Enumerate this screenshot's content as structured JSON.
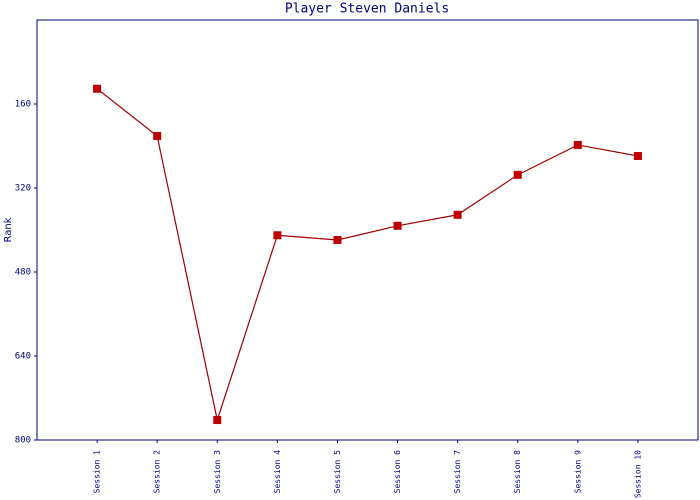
{
  "chart_data": {
    "type": "line",
    "title": "Player Steven Daniels",
    "y_label": "Rank",
    "categories": [
      "Session 1",
      "Session 2",
      "Session 3",
      "Session 4",
      "Session 5",
      "Session 6",
      "Session 7",
      "Session 8",
      "Session 9",
      "Session 10"
    ],
    "values": [
      131,
      221,
      762,
      410,
      419,
      392,
      371,
      295,
      238,
      259
    ],
    "color": "#c00000",
    "ylim": [
      800,
      0
    ],
    "yticks": [
      160,
      320,
      480,
      640,
      800
    ]
  }
}
